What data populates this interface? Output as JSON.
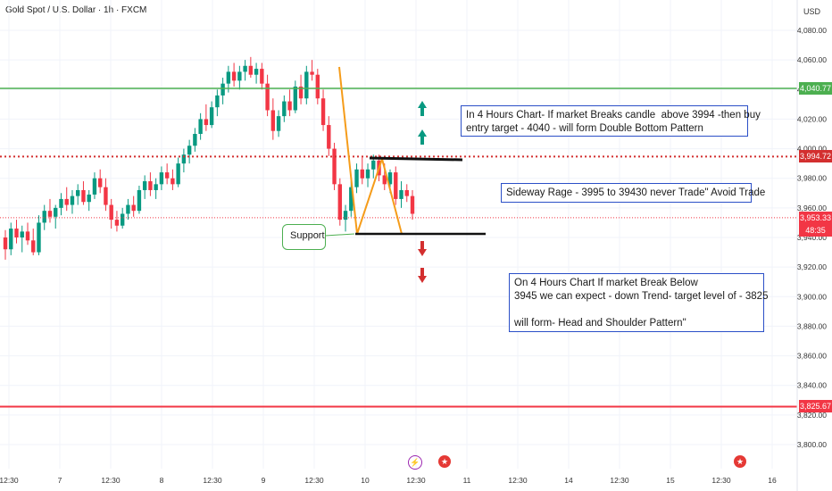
{
  "header": {
    "title": "Gold Spot / U.S. Dollar · 1h · FXCM",
    "currency": "USD"
  },
  "colors": {
    "up": "#089981",
    "down": "#f23645",
    "green_line": "#4caf50",
    "red_line": "#f23645",
    "dotted": "#d32f2f",
    "annotation_border": "#2b4fc7",
    "arrow_up": "#089981",
    "arrow_down": "#d32f2f"
  },
  "chart_data": {
    "type": "candlestick",
    "ylim": [
      3790,
      4090
    ],
    "y_ticks": [
      "4,080.00",
      "4,060.00",
      "4,040.00",
      "4,020.00",
      "4,000.00",
      "3,980.00",
      "3,960.00",
      "3,940.00",
      "3,920.00",
      "3,900.00",
      "3,880.00",
      "3,860.00",
      "3,840.00",
      "3,820.00",
      "3,800.00"
    ],
    "y_tick_values": [
      4080,
      4060,
      4040,
      4020,
      4000,
      3980,
      3960,
      3940,
      3920,
      3900,
      3880,
      3860,
      3840,
      3820,
      3800
    ],
    "x_ticks": [
      "12:30",
      "7",
      "12:30",
      "8",
      "12:30",
      "9",
      "12:30",
      "10",
      "12:30",
      "11",
      "12:30",
      "14",
      "12:30",
      "15",
      "12:30",
      "16"
    ],
    "candles": [
      [
        3940,
        3945,
        3925,
        3932
      ],
      [
        3932,
        3950,
        3928,
        3946
      ],
      [
        3946,
        3952,
        3936,
        3940
      ],
      [
        3940,
        3948,
        3930,
        3944
      ],
      [
        3944,
        3950,
        3935,
        3938
      ],
      [
        3938,
        3946,
        3928,
        3930
      ],
      [
        3930,
        3955,
        3928,
        3950
      ],
      [
        3950,
        3962,
        3945,
        3958
      ],
      [
        3958,
        3966,
        3950,
        3954
      ],
      [
        3954,
        3962,
        3946,
        3960
      ],
      [
        3960,
        3970,
        3955,
        3966
      ],
      [
        3966,
        3974,
        3958,
        3962
      ],
      [
        3962,
        3972,
        3956,
        3968
      ],
      [
        3968,
        3976,
        3962,
        3972
      ],
      [
        3972,
        3978,
        3962,
        3964
      ],
      [
        3964,
        3972,
        3958,
        3969
      ],
      [
        3969,
        3984,
        3966,
        3980
      ],
      [
        3980,
        3986,
        3970,
        3974
      ],
      [
        3974,
        3980,
        3958,
        3962
      ],
      [
        3962,
        3966,
        3946,
        3952
      ],
      [
        3952,
        3958,
        3944,
        3948
      ],
      [
        3948,
        3960,
        3946,
        3956
      ],
      [
        3956,
        3966,
        3952,
        3962
      ],
      [
        3962,
        3968,
        3954,
        3958
      ],
      [
        3958,
        3975,
        3956,
        3972
      ],
      [
        3972,
        3982,
        3966,
        3978
      ],
      [
        3978,
        3984,
        3968,
        3972
      ],
      [
        3972,
        3980,
        3966,
        3976
      ],
      [
        3976,
        3988,
        3972,
        3984
      ],
      [
        3984,
        3990,
        3976,
        3980
      ],
      [
        3980,
        3986,
        3972,
        3976
      ],
      [
        3976,
        3994,
        3974,
        3990
      ],
      [
        3990,
        4000,
        3984,
        3996
      ],
      [
        3996,
        4006,
        3990,
        4002
      ],
      [
        4002,
        4014,
        3998,
        4010
      ],
      [
        4010,
        4024,
        4006,
        4020
      ],
      [
        4020,
        4030,
        4012,
        4016
      ],
      [
        4016,
        4032,
        4014,
        4028
      ],
      [
        4028,
        4040,
        4022,
        4036
      ],
      [
        4036,
        4048,
        4030,
        4044
      ],
      [
        4044,
        4056,
        4038,
        4052
      ],
      [
        4052,
        4058,
        4042,
        4046
      ],
      [
        4046,
        4056,
        4040,
        4052
      ],
      [
        4052,
        4060,
        4046,
        4056
      ],
      [
        4056,
        4062,
        4048,
        4050
      ],
      [
        4050,
        4058,
        4044,
        4054
      ],
      [
        4054,
        4058,
        4040,
        4044
      ],
      [
        4044,
        4050,
        4022,
        4026
      ],
      [
        4026,
        4034,
        4006,
        4012
      ],
      [
        4012,
        4026,
        4008,
        4022
      ],
      [
        4022,
        4036,
        4018,
        4032
      ],
      [
        4032,
        4040,
        4022,
        4026
      ],
      [
        4026,
        4046,
        4024,
        4042
      ],
      [
        4042,
        4050,
        4030,
        4034
      ],
      [
        4034,
        4056,
        4030,
        4052
      ],
      [
        4052,
        4060,
        4046,
        4050
      ],
      [
        4050,
        4054,
        4030,
        4034
      ],
      [
        4034,
        4040,
        4012,
        4016
      ],
      [
        4016,
        4022,
        3995,
        4000
      ],
      [
        4000,
        4004,
        3972,
        3976
      ],
      [
        3976,
        3980,
        3948,
        3952
      ],
      [
        3952,
        3962,
        3944,
        3958
      ],
      [
        3958,
        3978,
        3954,
        3974
      ],
      [
        3974,
        3990,
        3970,
        3986
      ],
      [
        3986,
        3994,
        3976,
        3980
      ],
      [
        3980,
        3990,
        3974,
        3986
      ],
      [
        3986,
        3996,
        3980,
        3992
      ],
      [
        3992,
        3996,
        3978,
        3982
      ],
      [
        3982,
        3990,
        3972,
        3976
      ],
      [
        3976,
        3986,
        3970,
        3984
      ],
      [
        3984,
        3988,
        3962,
        3966
      ],
      [
        3966,
        3978,
        3960,
        3972
      ],
      [
        3972,
        3976,
        3964,
        3968
      ],
      [
        3968,
        3972,
        3952,
        3956
      ]
    ],
    "levels": [
      {
        "name": "resistance-green",
        "value": 4040.77,
        "label": "4,040.77"
      },
      {
        "name": "sideways-top-dotted",
        "value": 3994.72,
        "label": "3,994.72"
      },
      {
        "name": "target-red",
        "value": 3825.67,
        "label": "3,825.67"
      }
    ],
    "last_price": {
      "value": 3953.33,
      "label": "3,953.33",
      "countdown": "48:35"
    }
  },
  "annotations": {
    "buy_note": "In 4 Hours Chart- If market Breaks candle  above 3994 -then buy\nentry target - 4040 - will form Double Bottom Pattern",
    "sideways_note": "Sideway Rage - 3995 to 39430 never Trade\" Avoid Trade",
    "sell_note": "On 4 Hours Chart If market Break Below\n3945 we can expect - down Trend- target level of - 3825\n\nwill form- Head and Shoulder Pattern\"",
    "support_label": "Support"
  }
}
